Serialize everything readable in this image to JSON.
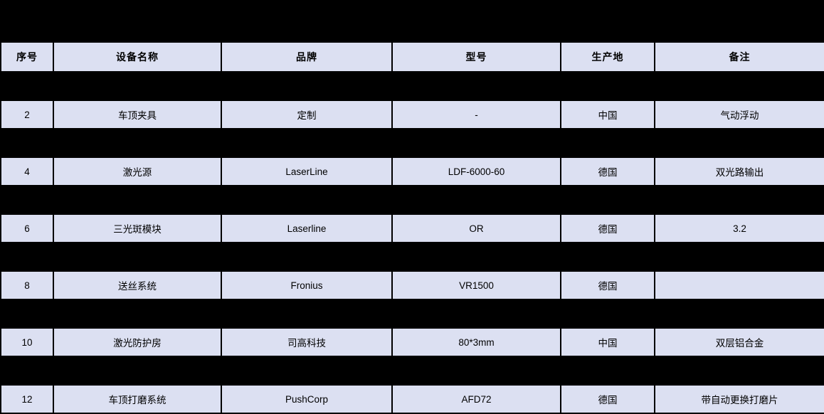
{
  "colors": {
    "page_bg": "#000000",
    "cell_bg": "#dce0f2",
    "grid": "#000000",
    "text": "#000000"
  },
  "table": {
    "headers": [
      "序号",
      "设备名称",
      "品牌",
      "型号",
      "生产地",
      "备注"
    ],
    "rows": [
      {
        "hidden": true,
        "cells": [
          "",
          "",
          "",
          "",
          "",
          ""
        ]
      },
      {
        "hidden": false,
        "cells": [
          "2",
          "车顶夹具",
          "定制",
          "-",
          "中国",
          "气动浮动"
        ]
      },
      {
        "hidden": true,
        "cells": [
          "",
          "",
          "",
          "",
          "",
          ""
        ]
      },
      {
        "hidden": false,
        "cells": [
          "4",
          "激光源",
          "LaserLine",
          "LDF-6000-60",
          "德国",
          "双光路输出"
        ]
      },
      {
        "hidden": true,
        "cells": [
          "",
          "",
          "",
          "",
          "",
          ""
        ]
      },
      {
        "hidden": false,
        "cells": [
          "6",
          "三光斑模块",
          "Laserline",
          "OR",
          "德国",
          "3.2"
        ]
      },
      {
        "hidden": true,
        "cells": [
          "",
          "",
          "",
          "",
          "",
          ""
        ]
      },
      {
        "hidden": false,
        "cells": [
          "8",
          "送丝系统",
          "Fronius",
          "VR1500",
          "德国",
          ""
        ]
      },
      {
        "hidden": true,
        "cells": [
          "",
          "",
          "",
          "",
          "",
          ""
        ]
      },
      {
        "hidden": false,
        "cells": [
          "10",
          "激光防护房",
          "司高科技",
          "80*3mm",
          "中国",
          "双层铝合金"
        ]
      },
      {
        "hidden": true,
        "cells": [
          "",
          "",
          "",
          "",
          "",
          ""
        ]
      },
      {
        "hidden": false,
        "cells": [
          "12",
          "车顶打磨系统",
          "PushCorp",
          "AFD72",
          "德国",
          "带自动更换打磨片"
        ]
      }
    ]
  }
}
